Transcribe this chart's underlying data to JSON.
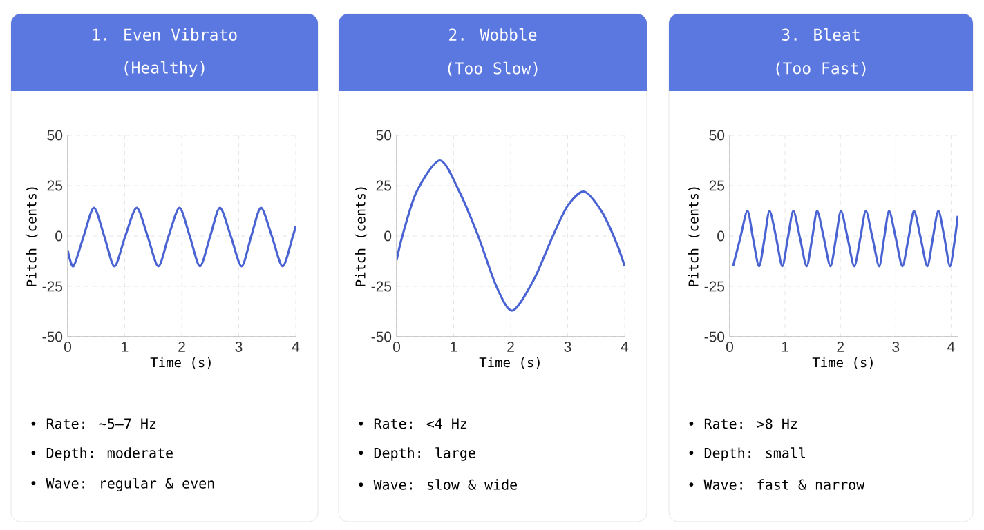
{
  "chart_data": [
    {
      "type": "line",
      "title": "1. Even Vibrato",
      "subtitle": "(Healthy)",
      "xlabel": "Time (s)",
      "ylabel": "Pitch (cents)",
      "xlim": [
        0,
        4
      ],
      "ylim": [
        -50,
        50
      ],
      "xticks": [
        0,
        1,
        2,
        3,
        4
      ],
      "yticks": [
        -50,
        -25,
        0,
        25,
        50
      ],
      "grid": true,
      "series": [
        {
          "color": "#4a63d3",
          "x": [
            0,
            0.1,
            0.28,
            0.46,
            0.64,
            0.82,
            1.01,
            1.21,
            1.4,
            1.59,
            1.77,
            1.96,
            2.14,
            2.32,
            2.5,
            2.67,
            2.86,
            3.05,
            3.22,
            3.39,
            3.58,
            3.77,
            3.95,
            4
          ],
          "values": [
            -7,
            -15,
            0,
            14,
            0,
            -15,
            0,
            14,
            0,
            -15,
            0,
            14,
            0,
            -15,
            0,
            14,
            0,
            -15,
            0,
            14,
            0,
            -15,
            0,
            5
          ]
        }
      ],
      "annotations": [
        "• Rate: ~5–7 Hz",
        "• Depth: moderate",
        "• Wave: regular & even"
      ]
    },
    {
      "type": "line",
      "title": "2. Wobble",
      "subtitle": "(Too Slow)",
      "xlabel": "Time (s)",
      "ylabel": "Pitch (cents)",
      "xlim": [
        0,
        4
      ],
      "ylim": [
        -50,
        50
      ],
      "xticks": [
        0,
        1,
        2,
        3,
        4
      ],
      "yticks": [
        -50,
        -25,
        0,
        25,
        50
      ],
      "grid": true,
      "series": [
        {
          "color": "#4a63d3",
          "x": [
            0,
            0.1,
            0.35,
            0.76,
            1.1,
            1.43,
            1.75,
            2.03,
            2.4,
            2.74,
            3.0,
            3.29,
            3.6,
            3.85,
            4
          ],
          "values": [
            -12,
            0,
            22,
            37.5,
            22,
            0,
            -25,
            -37,
            -22,
            0,
            15,
            22,
            12,
            -3,
            -15
          ]
        }
      ],
      "annotations": [
        "• Rate: <4 Hz",
        "• Depth: large",
        "• Wave: slow & wide"
      ]
    },
    {
      "type": "line",
      "title": "3. Bleat",
      "subtitle": "(Too Fast)",
      "xlabel": "Time (s)",
      "ylabel": "Pitch (cents)",
      "xlim": [
        0,
        4.12
      ],
      "ylim": [
        -50,
        50
      ],
      "xticks": [
        0,
        1,
        2,
        3,
        4
      ],
      "yticks": [
        -50,
        -25,
        0,
        25,
        50
      ],
      "grid": true,
      "series": [
        {
          "color": "#4a63d3",
          "x": [
            0.06,
            0.19,
            0.32,
            0.42,
            0.53,
            0.63,
            0.72,
            0.84,
            0.95,
            1.05,
            1.15,
            1.27,
            1.39,
            1.49,
            1.58,
            1.7,
            1.82,
            1.92,
            2.01,
            2.13,
            2.25,
            2.36,
            2.46,
            2.58,
            2.7,
            2.79,
            2.88,
            3.0,
            3.12,
            3.23,
            3.33,
            3.45,
            3.57,
            3.67,
            3.77,
            3.88,
            3.98,
            4.07,
            4.12
          ],
          "values": [
            -15,
            -1,
            12.5,
            -1,
            -15,
            -1,
            12.5,
            -1,
            -15,
            -1,
            12.5,
            -1,
            -15,
            -1,
            12.5,
            -1,
            -15,
            -1,
            12.5,
            -1,
            -15,
            -1,
            12.5,
            -1,
            -15,
            -1,
            12.5,
            -1,
            -15,
            -1,
            12.5,
            -1,
            -15,
            -1,
            12.5,
            -1,
            -15,
            -1,
            10
          ]
        }
      ],
      "annotations": [
        "• Rate: >8 Hz",
        "• Depth: small",
        "• Wave: fast & narrow"
      ]
    }
  ]
}
